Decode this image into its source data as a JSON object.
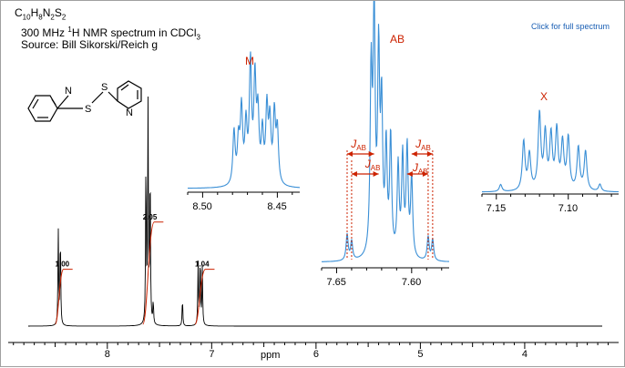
{
  "header": {
    "formula_parts": [
      "C",
      "10",
      "H",
      "8",
      "N",
      "2",
      "S",
      "2"
    ],
    "line2_pre": "300 MHz ",
    "line2_sup": "1",
    "line2_post": "H NMR spectrum in CDCl",
    "line2_sub": "3",
    "line3": "Source: Bill Sikorski/Reich g",
    "link": "Click for full spectrum"
  },
  "structure": {
    "atom_labels": [
      "N",
      "S",
      "S",
      "N"
    ]
  },
  "chart_data": [
    {
      "type": "line",
      "role": "main-spectrum",
      "xlabel": "ppm",
      "xlim": [
        8.95,
        3.1
      ],
      "x_ticks": [
        8,
        7,
        6,
        5,
        4
      ],
      "x_tick_labels": [
        "8",
        "7",
        "6",
        "5",
        "4"
      ],
      "peaks": [
        {
          "ppm": 8.47,
          "height": 0.42
        },
        {
          "ppm": 8.45,
          "height": 0.4
        },
        {
          "ppm": 7.63,
          "height": 0.72
        },
        {
          "ppm": 7.61,
          "height": 1.0
        },
        {
          "ppm": 7.59,
          "height": 0.7
        },
        {
          "ppm": 7.56,
          "height": 0.1
        },
        {
          "ppm": 7.28,
          "height": 0.12
        },
        {
          "ppm": 7.13,
          "height": 0.28
        },
        {
          "ppm": 7.11,
          "height": 0.3
        },
        {
          "ppm": 7.09,
          "height": 0.26
        }
      ],
      "integrals": [
        {
          "label": "1.00",
          "from": 8.5,
          "to": 8.42
        },
        {
          "label": "2.05",
          "from": 7.66,
          "to": 7.55
        },
        {
          "label": "1.04",
          "from": 7.16,
          "to": 7.06
        }
      ]
    },
    {
      "type": "line",
      "role": "inset",
      "multiplet_label": "M",
      "xlim": [
        8.51,
        8.435
      ],
      "x_ticks": [
        8.5,
        8.45
      ],
      "x_tick_labels": [
        "8.50",
        "8.45"
      ],
      "peaks": [
        {
          "x": 8.479,
          "y": 0.45
        },
        {
          "x": 8.476,
          "y": 0.35
        },
        {
          "x": 8.474,
          "y": 0.62
        },
        {
          "x": 8.471,
          "y": 0.48
        },
        {
          "x": 8.468,
          "y": 1.0
        },
        {
          "x": 8.465,
          "y": 0.85
        },
        {
          "x": 8.463,
          "y": 0.55
        },
        {
          "x": 8.46,
          "y": 0.42
        },
        {
          "x": 8.457,
          "y": 0.62
        },
        {
          "x": 8.455,
          "y": 0.5
        },
        {
          "x": 8.452,
          "y": 0.58
        },
        {
          "x": 8.45,
          "y": 0.45
        }
      ]
    },
    {
      "type": "line",
      "role": "inset",
      "multiplet_label": "AB",
      "coupling_label": "J",
      "coupling_sub": "AB",
      "xlim": [
        7.66,
        7.575
      ],
      "x_ticks": [
        7.65,
        7.6
      ],
      "x_tick_labels": [
        "7.65",
        "7.60"
      ],
      "peaks": [
        {
          "x": 7.643,
          "y": 0.11
        },
        {
          "x": 7.64,
          "y": 0.08
        },
        {
          "x": 7.627,
          "y": 0.75
        },
        {
          "x": 7.625,
          "y": 1.0
        },
        {
          "x": 7.622,
          "y": 0.82
        },
        {
          "x": 7.62,
          "y": 0.6
        },
        {
          "x": 7.617,
          "y": 0.45
        },
        {
          "x": 7.614,
          "y": 0.5
        },
        {
          "x": 7.609,
          "y": 0.38
        },
        {
          "x": 7.606,
          "y": 0.42
        },
        {
          "x": 7.603,
          "y": 0.46
        },
        {
          "x": 7.6,
          "y": 0.34
        },
        {
          "x": 7.589,
          "y": 0.1
        },
        {
          "x": 7.586,
          "y": 0.09
        }
      ]
    },
    {
      "type": "line",
      "role": "inset",
      "multiplet_label": "X",
      "xlim": [
        7.16,
        7.065
      ],
      "x_ticks": [
        7.15,
        7.1
      ],
      "x_tick_labels": [
        "7.15",
        "7.10"
      ],
      "peaks": [
        {
          "x": 7.147,
          "y": 0.08
        },
        {
          "x": 7.131,
          "y": 0.55
        },
        {
          "x": 7.127,
          "y": 0.4
        },
        {
          "x": 7.12,
          "y": 0.85
        },
        {
          "x": 7.116,
          "y": 0.62
        },
        {
          "x": 7.112,
          "y": 0.6
        },
        {
          "x": 7.108,
          "y": 0.66
        },
        {
          "x": 7.104,
          "y": 0.52
        },
        {
          "x": 7.1,
          "y": 0.58
        },
        {
          "x": 7.093,
          "y": 0.48
        },
        {
          "x": 7.088,
          "y": 0.44
        },
        {
          "x": 7.078,
          "y": 0.08
        }
      ]
    }
  ],
  "colors": {
    "spectrum": "#000000",
    "inset": "#3a8fd6",
    "annotation": "#cc2200",
    "link": "#1a5fb4"
  }
}
